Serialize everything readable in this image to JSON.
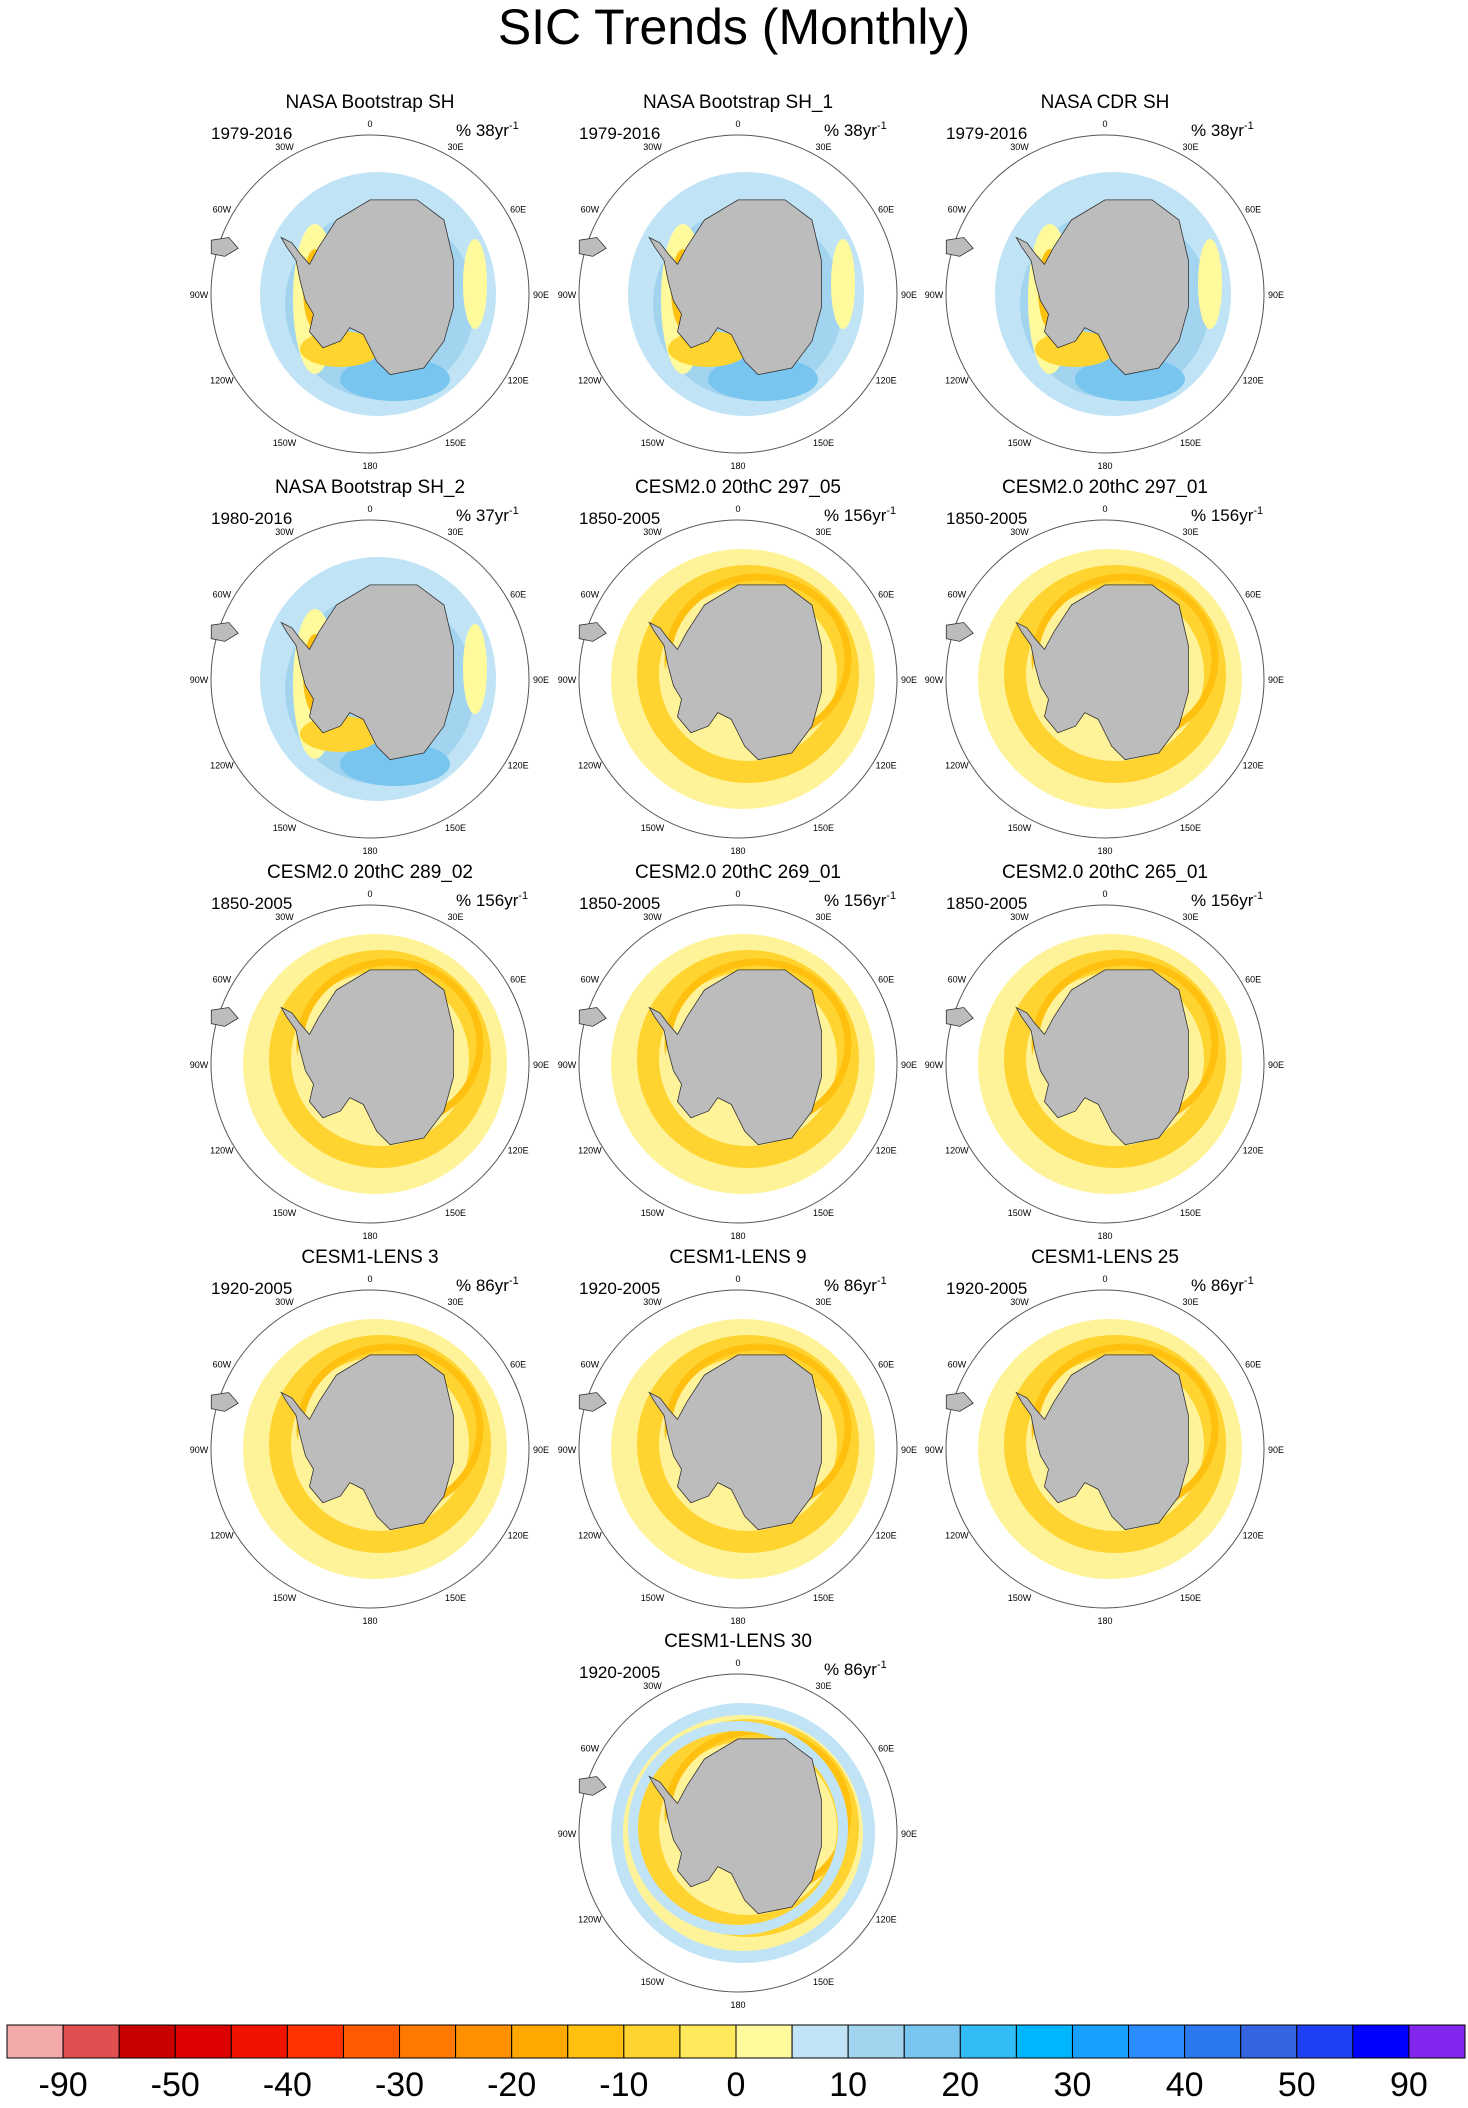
{
  "title": "SIC Trends (Monthly)",
  "longitude_labels": [
    "0",
    "30E",
    "60E",
    "90E",
    "120E",
    "150E",
    "180",
    "150W",
    "120W",
    "90W",
    "60W",
    "30W"
  ],
  "panels": [
    {
      "title": "NASA Bootstrap SH",
      "years": "1979-2016",
      "units": "% 38yr",
      "units_exponent": "-1"
    },
    {
      "title": "NASA Bootstrap SH_1",
      "years": "1979-2016",
      "units": "% 38yr",
      "units_exponent": "-1"
    },
    {
      "title": "NASA CDR SH",
      "years": "1979-2016",
      "units": "% 38yr",
      "units_exponent": "-1"
    },
    {
      "title": "NASA Bootstrap SH_2",
      "years": "1980-2016",
      "units": "% 37yr",
      "units_exponent": "-1"
    },
    {
      "title": "CESM2.0 20thC 297_05",
      "years": "1850-2005",
      "units": "% 156yr",
      "units_exponent": "-1"
    },
    {
      "title": "CESM2.0 20thC 297_01",
      "years": "1850-2005",
      "units": "% 156yr",
      "units_exponent": "-1"
    },
    {
      "title": "CESM2.0 20thC 289_02",
      "years": "1850-2005",
      "units": "% 156yr",
      "units_exponent": "-1"
    },
    {
      "title": "CESM2.0 20thC 269_01",
      "years": "1850-2005",
      "units": "% 156yr",
      "units_exponent": "-1"
    },
    {
      "title": "CESM2.0 20thC 265_01",
      "years": "1850-2005",
      "units": "% 156yr",
      "units_exponent": "-1"
    },
    {
      "title": "CESM1-LENS 3",
      "years": "1920-2005",
      "units": "% 86yr",
      "units_exponent": "-1"
    },
    {
      "title": "CESM1-LENS 9",
      "years": "1920-2005",
      "units": "% 86yr",
      "units_exponent": "-1"
    },
    {
      "title": "CESM1-LENS 25",
      "years": "1920-2005",
      "units": "% 86yr",
      "units_exponent": "-1"
    },
    {
      "title": "CESM1-LENS 30",
      "years": "1920-2005",
      "units": "% 86yr",
      "units_exponent": "-1"
    }
  ],
  "colorbar": {
    "colors": [
      "#f4aaaa",
      "#e05050",
      "#c80000",
      "#dc0000",
      "#f01400",
      "#ff3200",
      "#ff5a00",
      "#ff7800",
      "#ff9000",
      "#ffa800",
      "#ffc010",
      "#ffd430",
      "#ffe85a",
      "#fffa9c",
      "#c0e4f6",
      "#a2d4f0",
      "#78c6f0",
      "#32bcf6",
      "#00b6ff",
      "#18a0ff",
      "#2a8cff",
      "#2c78ee",
      "#3464e0",
      "#2040f6",
      "#0000ff",
      "#8228ee"
    ],
    "labels": [
      -90,
      -50,
      -40,
      -30,
      -20,
      -10,
      0,
      10,
      20,
      30,
      40,
      50,
      90
    ]
  }
}
